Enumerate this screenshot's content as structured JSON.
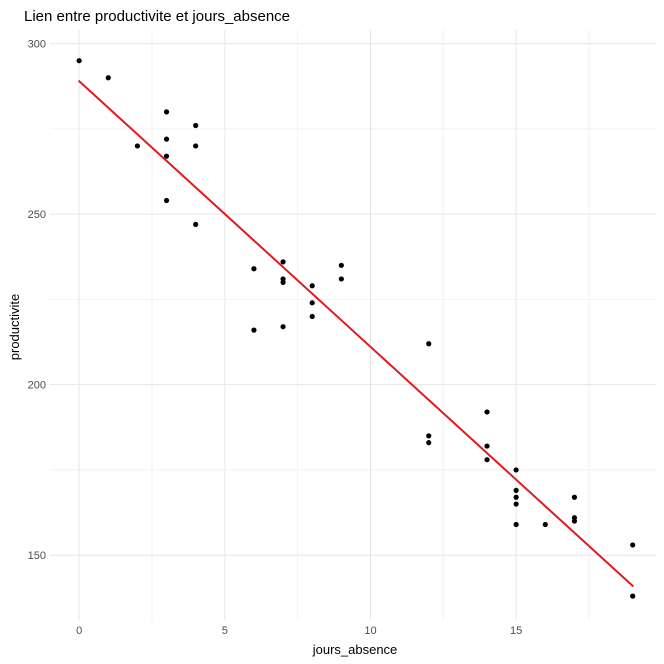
{
  "chart_data": {
    "type": "scatter",
    "title": "Lien entre productivite et jours_absence",
    "xlabel": "jours_absence",
    "ylabel": "productivite",
    "xlim": [
      -1,
      19.8
    ],
    "ylim": [
      131,
      304
    ],
    "x_ticks": [
      0,
      5,
      10,
      15
    ],
    "y_ticks": [
      150,
      200,
      250,
      300
    ],
    "grid": true,
    "theme": "minimal",
    "point_color": "#000000",
    "line_color": "#e31a1c",
    "points": [
      {
        "x": 0,
        "y": 295
      },
      {
        "x": 1,
        "y": 290
      },
      {
        "x": 2,
        "y": 270
      },
      {
        "x": 3,
        "y": 280
      },
      {
        "x": 3,
        "y": 272
      },
      {
        "x": 3,
        "y": 267
      },
      {
        "x": 3,
        "y": 254
      },
      {
        "x": 4,
        "y": 276
      },
      {
        "x": 4,
        "y": 270
      },
      {
        "x": 4,
        "y": 247
      },
      {
        "x": 6,
        "y": 234
      },
      {
        "x": 6,
        "y": 216
      },
      {
        "x": 7,
        "y": 236
      },
      {
        "x": 7,
        "y": 231
      },
      {
        "x": 7,
        "y": 230
      },
      {
        "x": 7,
        "y": 217
      },
      {
        "x": 8,
        "y": 229
      },
      {
        "x": 8,
        "y": 224
      },
      {
        "x": 8,
        "y": 220
      },
      {
        "x": 9,
        "y": 235
      },
      {
        "x": 9,
        "y": 231
      },
      {
        "x": 12,
        "y": 212
      },
      {
        "x": 12,
        "y": 185
      },
      {
        "x": 12,
        "y": 183
      },
      {
        "x": 14,
        "y": 192
      },
      {
        "x": 14,
        "y": 182
      },
      {
        "x": 14,
        "y": 178
      },
      {
        "x": 15,
        "y": 175
      },
      {
        "x": 15,
        "y": 169
      },
      {
        "x": 15,
        "y": 167
      },
      {
        "x": 15,
        "y": 165
      },
      {
        "x": 15,
        "y": 159
      },
      {
        "x": 16,
        "y": 159
      },
      {
        "x": 17,
        "y": 167
      },
      {
        "x": 17,
        "y": 161
      },
      {
        "x": 17,
        "y": 160
      },
      {
        "x": 19,
        "y": 153
      },
      {
        "x": 19,
        "y": 138
      }
    ],
    "regression_line": {
      "x": [
        0,
        19
      ],
      "y": [
        289,
        141
      ]
    }
  }
}
